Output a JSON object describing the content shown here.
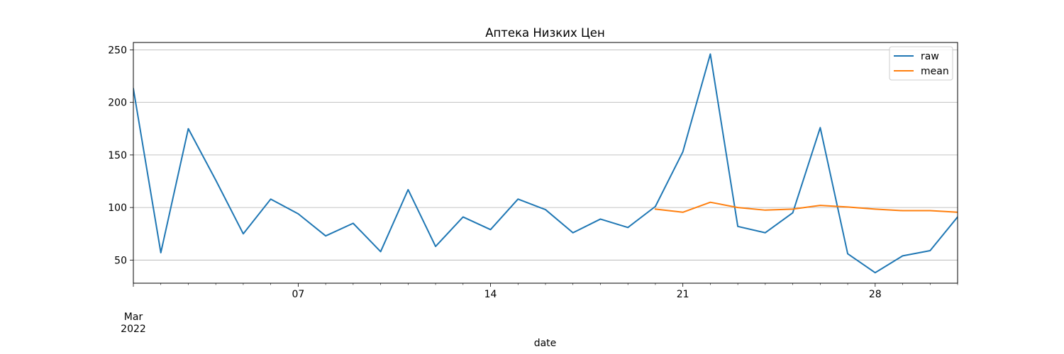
{
  "chart_data": {
    "type": "line",
    "title": "Аптека Низких Цен",
    "xlabel": "date",
    "ylabel": "",
    "xlim": [
      "2022-03-01",
      "2022-03-31"
    ],
    "ylim": [
      28,
      257
    ],
    "grid": "horizontal",
    "legend_position": "top-right",
    "x_tick_labels": [
      {
        "date": "2022-03-07",
        "label": "07"
      },
      {
        "date": "2022-03-14",
        "label": "14"
      },
      {
        "date": "2022-03-21",
        "label": "21"
      },
      {
        "date": "2022-03-28",
        "label": "28"
      }
    ],
    "x_corner_label": {
      "date": "2022-03-01",
      "month": "Mar",
      "year": "2022"
    },
    "y_ticks": [
      50,
      100,
      150,
      200,
      250
    ],
    "series": [
      {
        "name": "raw",
        "color": "#1f77b4",
        "x": [
          "2022-03-01",
          "2022-03-02",
          "2022-03-03",
          "2022-03-04",
          "2022-03-05",
          "2022-03-06",
          "2022-03-07",
          "2022-03-08",
          "2022-03-09",
          "2022-03-10",
          "2022-03-11",
          "2022-03-12",
          "2022-03-13",
          "2022-03-14",
          "2022-03-15",
          "2022-03-16",
          "2022-03-17",
          "2022-03-18",
          "2022-03-19",
          "2022-03-20",
          "2022-03-21",
          "2022-03-22",
          "2022-03-23",
          "2022-03-24",
          "2022-03-25",
          "2022-03-26",
          "2022-03-27",
          "2022-03-28",
          "2022-03-29",
          "2022-03-30",
          "2022-03-31"
        ],
        "values": [
          213,
          57,
          175,
          126,
          75,
          108,
          94,
          73,
          85,
          58,
          117,
          63,
          91,
          79,
          108,
          98,
          76,
          89,
          81,
          101,
          153,
          246,
          82,
          76,
          95,
          176,
          56,
          38,
          54,
          59,
          91
        ]
      },
      {
        "name": "mean",
        "color": "#ff7f0e",
        "x": [
          "2022-03-20",
          "2022-03-21",
          "2022-03-22",
          "2022-03-23",
          "2022-03-24",
          "2022-03-25",
          "2022-03-26",
          "2022-03-27",
          "2022-03-28",
          "2022-03-29",
          "2022-03-30",
          "2022-03-31"
        ],
        "values": [
          98.5,
          95.5,
          105,
          100,
          97.5,
          98.5,
          102,
          100.5,
          98.5,
          97,
          97,
          95.5
        ]
      }
    ]
  }
}
